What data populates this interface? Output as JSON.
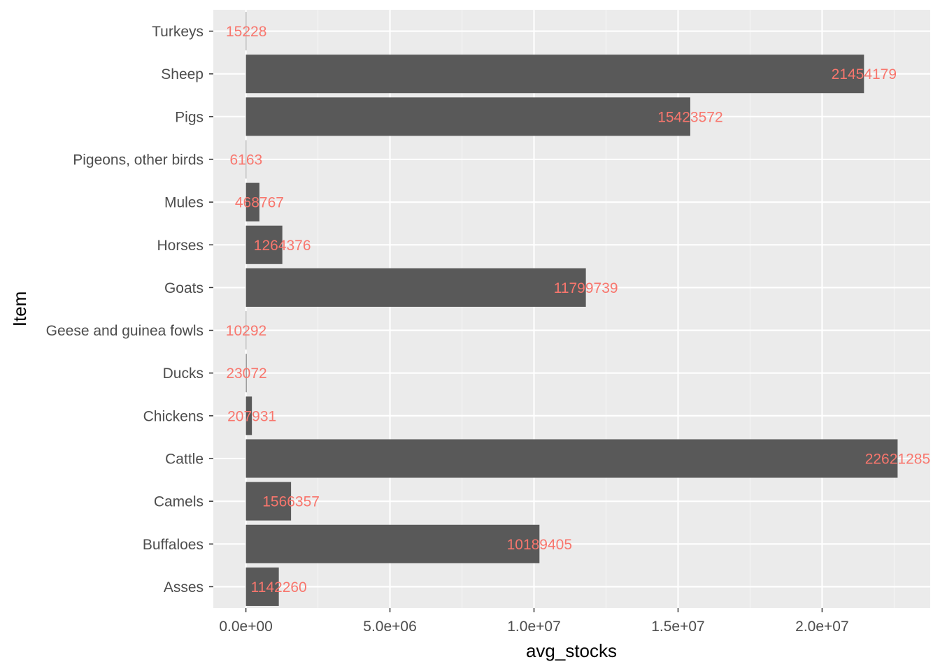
{
  "chart_data": {
    "type": "bar",
    "orientation": "horizontal",
    "title": "",
    "xlabel": "avg_stocks",
    "ylabel": "Item",
    "categories": [
      "Asses",
      "Buffaloes",
      "Camels",
      "Cattle",
      "Chickens",
      "Ducks",
      "Geese and guinea fowls",
      "Goats",
      "Horses",
      "Mules",
      "Pigeons, other birds",
      "Pigs",
      "Sheep",
      "Turkeys"
    ],
    "values": [
      1142260,
      10189405,
      1566357,
      22621285,
      207931,
      23072,
      10292,
      11799739,
      1264376,
      468767,
      6163,
      15423572,
      21454179,
      15228
    ],
    "data_labels": [
      "1142260",
      "10189405",
      "1566357",
      "22621285",
      "207931",
      "23072",
      "10292",
      "11799739",
      "1264376",
      "468767",
      "6163",
      "15423572",
      "21454179",
      "15228"
    ],
    "xticks": [
      0,
      5000000,
      10000000,
      15000000,
      20000000
    ],
    "xtick_labels": [
      "0.0e+00",
      "5.0e+06",
      "1.0e+07",
      "1.5e+07",
      "2.0e+07"
    ],
    "xlim": [
      -1131064,
      23752349
    ],
    "grid": true,
    "legend": "none",
    "colors": {
      "bar": "#595959",
      "label": "#F8766D",
      "panel": "#EBEBEB",
      "grid_major": "#FFFFFF",
      "grid_minor": "#F5F5F5",
      "tick_text": "#4D4D4D",
      "axis_title": "#000000"
    }
  }
}
